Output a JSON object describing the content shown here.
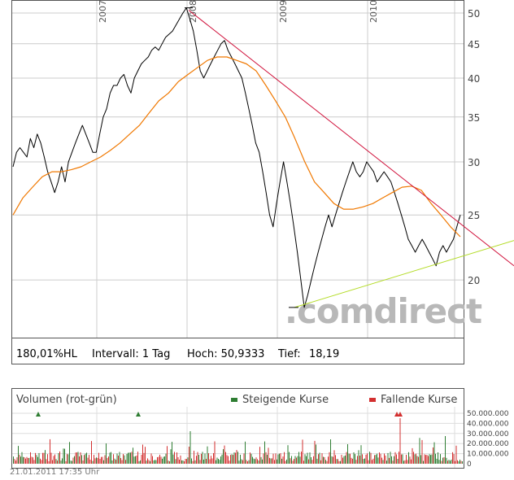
{
  "chart_data": [
    {
      "type": "line",
      "x_labels": [
        "2007",
        "2008",
        "2009",
        "2010"
      ],
      "y_ticks": [
        20,
        25,
        30,
        35,
        40,
        45,
        50
      ],
      "scale": "log",
      "ylim": [
        16.5,
        52
      ],
      "grid": true,
      "series": [
        {
          "values": [
            29.5,
            31,
            31.5,
            31,
            30.5,
            32.5,
            31.5,
            33,
            32,
            30.5,
            29,
            28,
            27,
            28,
            29.5,
            28,
            30,
            31,
            32,
            33,
            34,
            33,
            32,
            31,
            31,
            33,
            35,
            36,
            38,
            39,
            39,
            40,
            40.5,
            39,
            38,
            40,
            41,
            42,
            42.5,
            43,
            44,
            44.5,
            44,
            45,
            46,
            46.5,
            47,
            48,
            49,
            50,
            50.9,
            49,
            47,
            44,
            41,
            40,
            41,
            42,
            43,
            44,
            45,
            45.5,
            44,
            43,
            42,
            41,
            40,
            38,
            36,
            34,
            32,
            31,
            29,
            27,
            25,
            24,
            26,
            28,
            30,
            28,
            26,
            24,
            22,
            20,
            18.2,
            19,
            20,
            21,
            22,
            23,
            24,
            25,
            24,
            25,
            26,
            27,
            28,
            29,
            30,
            29,
            28.5,
            29,
            30,
            29.5,
            29,
            28,
            28.5,
            29,
            28.5,
            28,
            27,
            26,
            25,
            24,
            23,
            22.5,
            22,
            22.5,
            23,
            22.5,
            22,
            21.5,
            21,
            22,
            22.5,
            22,
            22.5,
            23,
            24,
            25
          ],
          "color": "#000000"
        },
        {
          "values": [
            25,
            26.5,
            27.5,
            28.5,
            29,
            29,
            29.2,
            29.5,
            30,
            30.5,
            31.2,
            32,
            33,
            34,
            35.5,
            37,
            38,
            39.5,
            40.5,
            41.5,
            42.5,
            43,
            43,
            42.5,
            42,
            41,
            39,
            37,
            35,
            32.5,
            30,
            28,
            27,
            26,
            25.5,
            25.5,
            25.7,
            26,
            26.5,
            27,
            27.5,
            27.6,
            27.2,
            26,
            25,
            24,
            23.2
          ],
          "color": "#f07800"
        },
        {
          "values": [
            50.5,
            21.0
          ],
          "color": "#d0103a"
        },
        {
          "values": [
            18.2,
            22.9
          ],
          "color": "#b4dc28"
        }
      ]
    },
    {
      "type": "bar",
      "title": "Volumen (rot-grün)",
      "legend": [
        "Steigende Kurse",
        "Fallende Kurse"
      ],
      "y_ticks": [
        "50.000.000",
        "40.000.000",
        "30.000.000",
        "20.000.000",
        "10.000.000",
        "0"
      ],
      "ylim": [
        0,
        50000000
      ],
      "colors": {
        "up": "#2e7d32",
        "down": "#d32f2f"
      }
    }
  ],
  "info": {
    "hl": "180,01%HL",
    "interval": "Intervall: 1 Tag",
    "high": "Hoch: 50,9333",
    "low_label": "Tief:",
    "low_value": "18,19"
  },
  "watermark": ".comdirect",
  "timestamp": "21.01.2011 17:35 Uhr"
}
